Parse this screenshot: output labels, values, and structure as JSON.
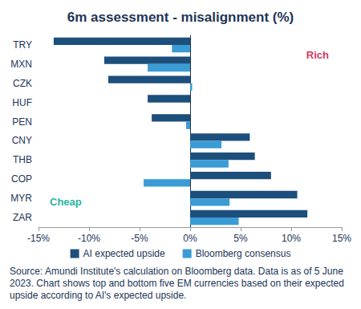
{
  "chart_data": {
    "type": "bar",
    "orientation": "horizontal",
    "title": "6m assessment - misalignment (%)",
    "categories": [
      "TRY",
      "MXN",
      "CZK",
      "HUF",
      "PEN",
      "CNY",
      "THB",
      "COP",
      "MYR",
      "ZAR"
    ],
    "series": [
      {
        "name": "AI expected upside",
        "color": "#1d4f7c",
        "values": [
          -13.5,
          -8.5,
          -8.1,
          -4.2,
          -3.8,
          5.9,
          6.4,
          8.0,
          10.6,
          11.6
        ]
      },
      {
        "name": "Bloomberg consensus",
        "color": "#3a9bd5",
        "values": [
          -1.8,
          -4.2,
          0.2,
          0,
          -0.4,
          3.1,
          3.8,
          -4.6,
          3.9,
          4.8
        ]
      }
    ],
    "xlim": [
      -15,
      15
    ],
    "xticks": [
      {
        "value": -15,
        "label": "-15%"
      },
      {
        "value": -10,
        "label": "-10%"
      },
      {
        "value": -5,
        "label": "-5%"
      },
      {
        "value": 0,
        "label": "0%"
      },
      {
        "value": 5,
        "label": "5%"
      },
      {
        "value": 10,
        "label": "10%"
      },
      {
        "value": 15,
        "label": "15%"
      }
    ],
    "grid": false,
    "legend": "bottom",
    "annotations": [
      {
        "text": "Rich",
        "color": "#d23a62"
      },
      {
        "text": "Cheap",
        "color": "#2bb3a3"
      }
    ],
    "source": "Source: Amundi Institute's calculation on Bloomberg data. Data is as of 5 June 2023. Chart shows top and bottom five EM currencies based on their expected upside according to AI's expected upside."
  }
}
